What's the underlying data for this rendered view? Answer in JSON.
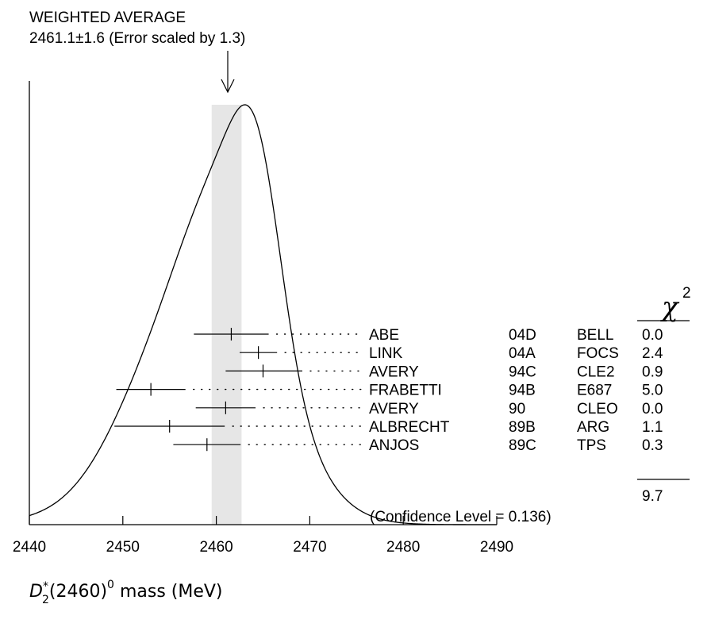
{
  "chart_data": {
    "type": "ideogram",
    "title": "WEIGHTED AVERAGE",
    "subtitle": "2461.1±1.6 (Error scaled by 1.3)",
    "weighted_average": {
      "value": 2461.1,
      "error": 1.6,
      "scale_factor": 1.3
    },
    "xlabel": {
      "main": "D",
      "superscript": "*",
      "subscript": "2",
      "rest": "(2460)",
      "rest_superscript": "0",
      "suffix": " mass (MeV)"
    },
    "xlim": [
      2440,
      2490
    ],
    "xticks": [
      2440,
      2450,
      2460,
      2470,
      2480,
      2490
    ],
    "chi2_header": "χ",
    "chi2_header_power": "2",
    "measurements": [
      {
        "author": "ABE",
        "ref": "04D",
        "experiment": "BELL",
        "value": 2461.6,
        "error_low": 4.0,
        "error_high": 4.0,
        "chi2": "0.0"
      },
      {
        "author": "LINK",
        "ref": "04A",
        "experiment": "FOCS",
        "value": 2464.5,
        "error_low": 2.0,
        "error_high": 2.0,
        "chi2": "2.4"
      },
      {
        "author": "AVERY",
        "ref": "94C",
        "experiment": "CLE2",
        "value": 2465.0,
        "error_low": 4.0,
        "error_high": 4.2,
        "chi2": "0.9"
      },
      {
        "author": "FRABETTI",
        "ref": "94B",
        "experiment": "E687",
        "value": 2453.0,
        "error_low": 3.7,
        "error_high": 3.7,
        "chi2": "5.0"
      },
      {
        "author": "AVERY",
        "ref": "90",
        "experiment": "CLEO",
        "value": 2461.0,
        "error_low": 3.2,
        "error_high": 3.2,
        "chi2": "0.0"
      },
      {
        "author": "ALBRECHT",
        "ref": "89B",
        "experiment": "ARG",
        "value": 2455.0,
        "error_low": 5.9,
        "error_high": 5.9,
        "chi2": "1.1"
      },
      {
        "author": "ANJOS",
        "ref": "89C",
        "experiment": "TPS",
        "value": 2459.0,
        "error_low": 3.6,
        "error_high": 3.6,
        "chi2": "0.3"
      }
    ],
    "chi2_total": "9.7",
    "confidence_level": "(Confidence Level = 0.136)"
  }
}
